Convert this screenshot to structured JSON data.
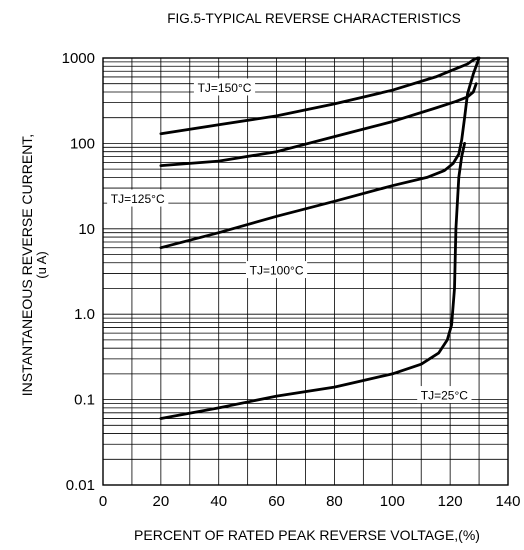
{
  "chart_data": {
    "type": "line",
    "title": "FIG.5-TYPICAL REVERSE CHARACTERISTICS",
    "xlabel": "PERCENT OF RATED PEAK REVERSE VOLTAGE,(%)",
    "ylabel": "INSTANTANEOUS REVERSE CURRENT,",
    "ylabel_unit": "(u A)",
    "x_scale": "linear",
    "y_scale": "log",
    "xlim": [
      0,
      140
    ],
    "ylim": [
      0.01,
      1000
    ],
    "grid": true,
    "x_ticks": [
      "0",
      "20",
      "40",
      "60",
      "80",
      "100",
      "120",
      "140"
    ],
    "y_ticks": [
      "0.01",
      "0.1",
      "1.0",
      "10",
      "100",
      "1000"
    ],
    "series": [
      {
        "name": "TJ=150°C",
        "x": [
          20,
          40,
          60,
          80,
          100,
          115,
          122,
          126,
          128,
          129.5
        ],
        "y": [
          130,
          165,
          210,
          290,
          420,
          600,
          750,
          850,
          950,
          1000
        ]
      },
      {
        "name": "TJ=125°C",
        "x": [
          20,
          40,
          60,
          80,
          100,
          115,
          122,
          126,
          128,
          129
        ],
        "y": [
          55,
          62,
          80,
          120,
          180,
          260,
          310,
          350,
          400,
          500
        ]
      },
      {
        "name": "TJ=100°C",
        "x": [
          20,
          40,
          60,
          80,
          100,
          112,
          118,
          121,
          123,
          124,
          125,
          126,
          128,
          130
        ],
        "y": [
          6,
          9,
          14,
          21,
          32,
          40,
          48,
          58,
          75,
          110,
          200,
          380,
          650,
          1000
        ]
      },
      {
        "name": "TJ=25°C",
        "x": [
          20,
          40,
          60,
          80,
          100,
          110,
          116,
          119,
          120.5,
          121.5,
          122,
          123,
          124,
          125
        ],
        "y": [
          0.06,
          0.08,
          0.11,
          0.14,
          0.2,
          0.26,
          0.35,
          0.5,
          0.75,
          2,
          10,
          40,
          70,
          100
        ]
      }
    ]
  }
}
